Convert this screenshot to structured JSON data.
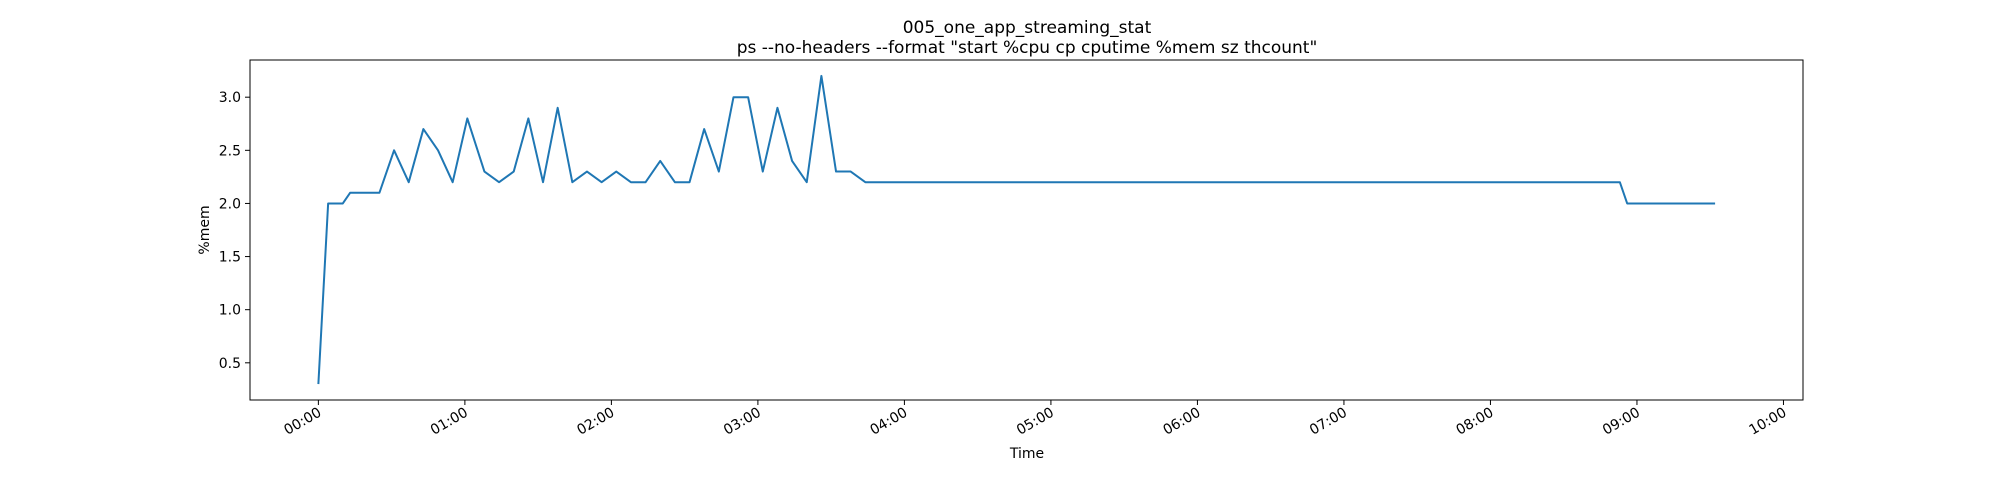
{
  "chart_data": {
    "type": "line",
    "title": "005_one_app_streaming_stat",
    "subtitle": "ps --no-headers --format \"start %cpu cp cputime %mem sz thcount\"",
    "xlabel": "Time",
    "ylabel": "%mem",
    "xlim": [
      "-00:28",
      "10:08"
    ],
    "ylim": [
      0.15,
      3.35
    ],
    "x_ticks": [
      "00:00",
      "01:00",
      "02:00",
      "03:00",
      "04:00",
      "05:00",
      "06:00",
      "07:00",
      "08:00",
      "09:00",
      "10:00"
    ],
    "y_ticks": [
      "0.5",
      "1.0",
      "1.5",
      "2.0",
      "2.5",
      "3.0"
    ],
    "grid": false,
    "color": "#1f77b4",
    "series": [
      {
        "x": [
          "00:00",
          "00:04",
          "00:10",
          "00:13",
          "00:19",
          "00:25",
          "00:31",
          "00:37",
          "00:43",
          "00:49",
          "00:55",
          "01:01",
          "01:08",
          "01:14",
          "01:20",
          "01:26",
          "01:32",
          "01:38",
          "01:44",
          "01:50",
          "01:56",
          "02:02",
          "02:08",
          "02:14",
          "02:20",
          "02:26",
          "02:32",
          "02:38",
          "02:44",
          "02:50",
          "02:56",
          "03:02",
          "03:08",
          "03:14",
          "03:20",
          "03:26",
          "03:32",
          "03:38",
          "03:44",
          "03:50",
          "03:56",
          "04:02",
          "08:53",
          "08:56",
          "09:32"
        ],
        "y": [
          0.3,
          2.0,
          2.0,
          2.1,
          2.1,
          2.1,
          2.5,
          2.2,
          2.7,
          2.5,
          2.2,
          2.8,
          2.3,
          2.2,
          2.3,
          2.8,
          2.2,
          2.9,
          2.2,
          2.3,
          2.2,
          2.3,
          2.2,
          2.2,
          2.4,
          2.2,
          2.2,
          2.7,
          2.3,
          3.0,
          3.0,
          2.3,
          2.9,
          2.4,
          2.2,
          3.2,
          2.3,
          2.3,
          2.2,
          2.2,
          2.2,
          2.2,
          2.2,
          2.0,
          2.0
        ]
      }
    ]
  }
}
